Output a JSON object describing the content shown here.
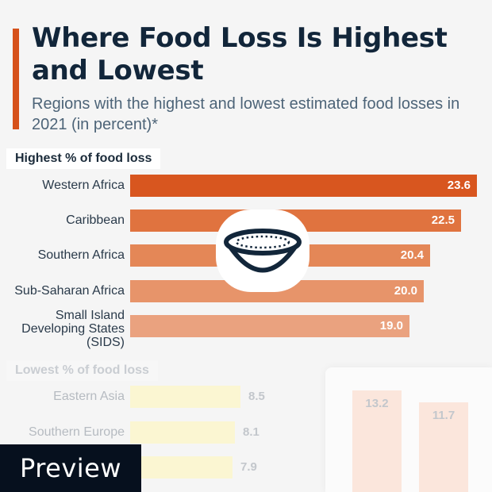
{
  "title": "Where Food Loss Is Highest and Lowest",
  "subtitle": "Regions with the highest and lowest estimated food losses in 2021 (in percent)*",
  "colors": {
    "accent": "#d6511b",
    "title": "#12263a",
    "highest_bars": [
      "#d8561f",
      "#e0733f",
      "#e48757",
      "#e7946a",
      "#eaa27f"
    ],
    "lowest_bars": "#fbf6d2"
  },
  "icon": "bowl-icon",
  "watermark": "Preview",
  "chart_data": {
    "type": "bar",
    "orientation": "horizontal",
    "title": "Where Food Loss Is Highest and Lowest",
    "subtitle": "Regions with the highest and lowest estimated food losses in 2021 (in percent)*",
    "unit": "percent",
    "xlim": [
      0,
      23.6
    ],
    "groups": [
      {
        "name": "Highest % of food loss",
        "categories": [
          "Western Africa",
          "Caribbean",
          "Southern Africa",
          "Sub-Saharan Africa",
          "Small Island Developing States (SIDS)"
        ],
        "values": [
          23.6,
          22.5,
          20.4,
          20.0,
          19.0
        ],
        "labels": [
          "23.6",
          "22.5",
          "20.4",
          "20.0",
          "19.0"
        ]
      },
      {
        "name": "Lowest % of food loss",
        "categories": [
          "Eastern Asia",
          "Southern Europe",
          ""
        ],
        "values": [
          8.5,
          8.1,
          7.9
        ],
        "labels": [
          "8.5",
          "8.1",
          "7.9"
        ]
      }
    ],
    "inset": {
      "type": "bar",
      "values": [
        13.2,
        11.7
      ],
      "labels": [
        "13.2",
        "11.7"
      ]
    }
  }
}
